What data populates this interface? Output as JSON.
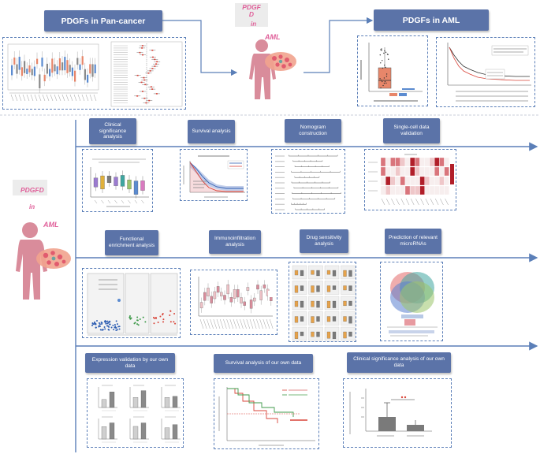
{
  "top": {
    "pan_cancer_title": "PDGFs in Pan-cancer",
    "aml_title": "PDGFs in AML",
    "center_gene": "PDGFD",
    "center_in": "in",
    "center_disease": "AML"
  },
  "bottom_left": {
    "gene": "PDGFD",
    "in": "in",
    "disease": "AML"
  },
  "row1": [
    {
      "label": "Clinical significance analysis"
    },
    {
      "label": "Survival analysis"
    },
    {
      "label": "Nomogram construction"
    },
    {
      "label": "Single-cell data validation"
    }
  ],
  "row2": [
    {
      "label": "Functional enrichment analysis"
    },
    {
      "label": "Immunoinfiltration analysis"
    },
    {
      "label": "Drug sensitivity analysis"
    },
    {
      "label": "Prediction of relevant microRNAs"
    }
  ],
  "row3": [
    {
      "label": "Expression validation by our own data"
    },
    {
      "label": "Survival analysis of our own data"
    },
    {
      "label": "Clinical significance analysis of our own data"
    }
  ],
  "colors": {
    "header_bg": "#5b73a8",
    "arrow": "#5b7fb8",
    "accent_pink": "#e0609a",
    "body_figure": "#d98c9b"
  }
}
